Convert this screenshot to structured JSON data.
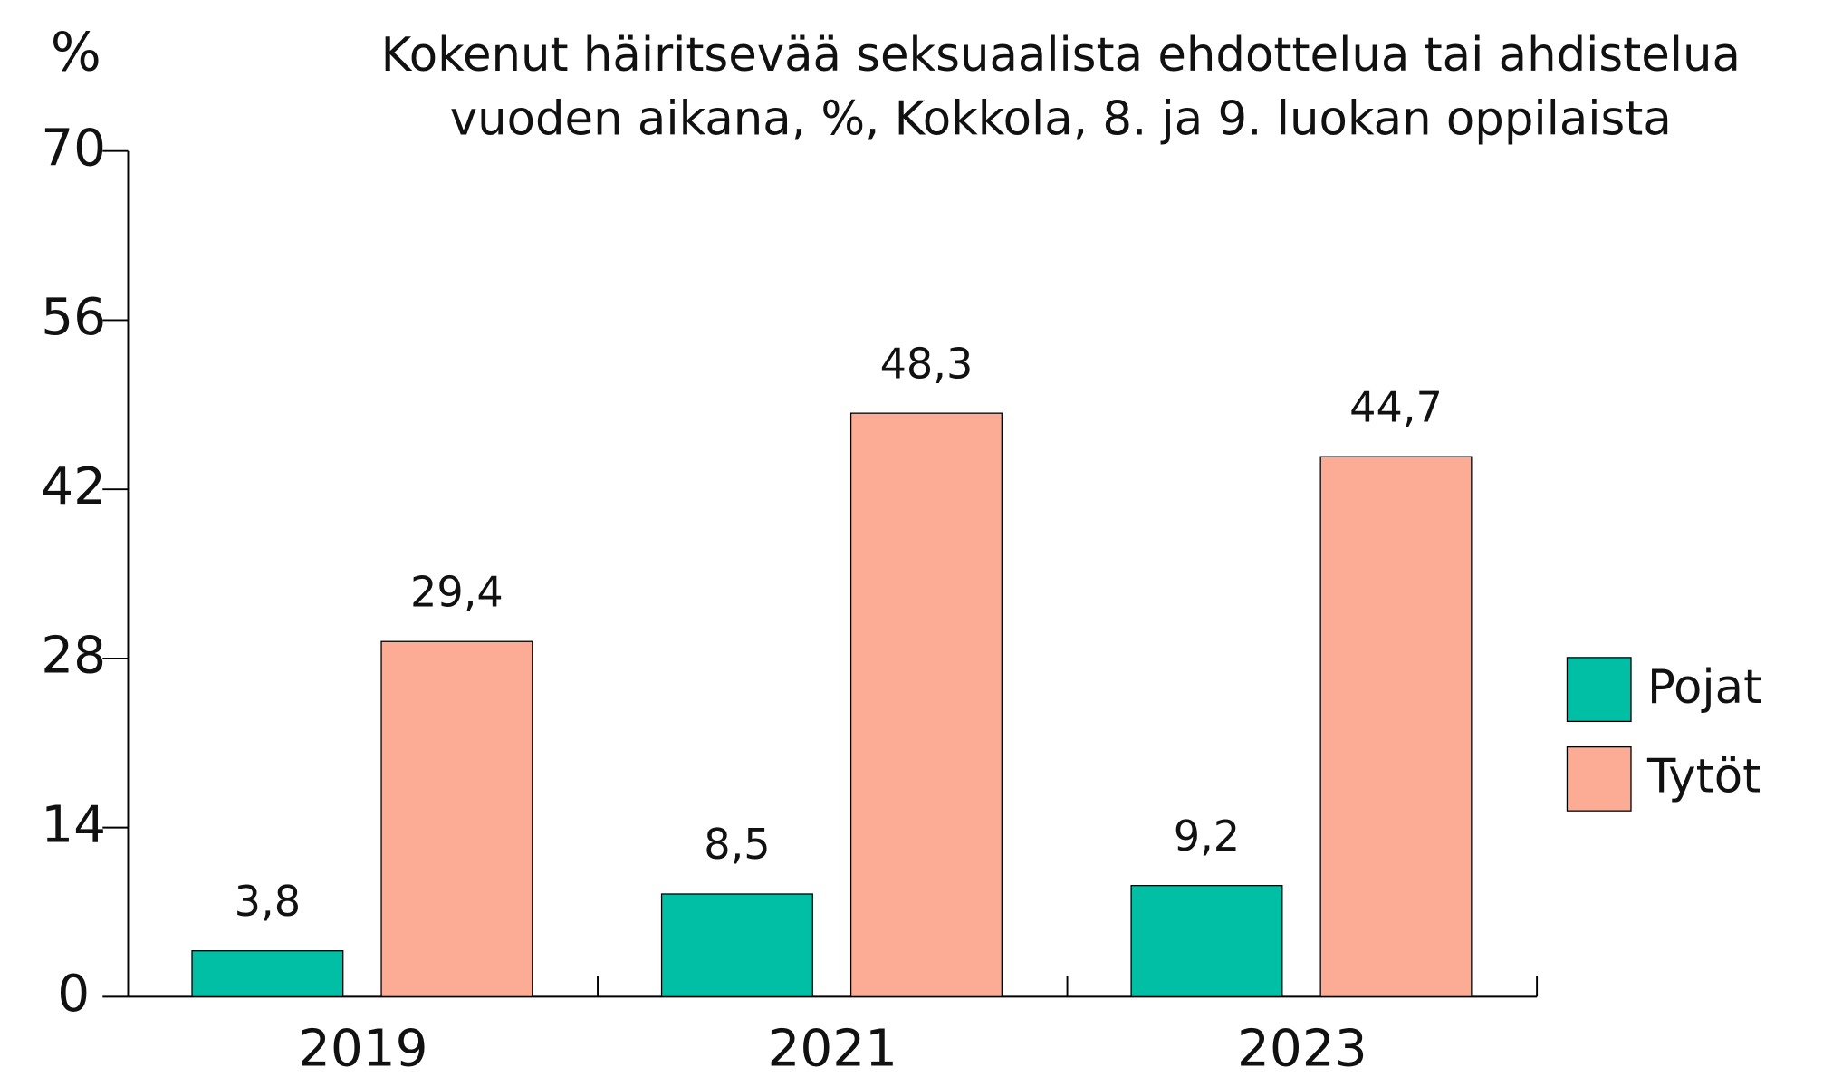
{
  "chart_data": {
    "type": "bar",
    "title": [
      "Kokenut häiritsevää seksuaalista ehdottelua tai ahdistelua",
      "vuoden aikana, %, Kokkola, 8. ja 9. luokan oppilaista"
    ],
    "y_label": "%",
    "categories": [
      "2019",
      "2021",
      "2023"
    ],
    "series": [
      {
        "name": "Pojat",
        "color": "#00bfa5",
        "values": [
          3.8,
          8.5,
          9.2
        ],
        "value_labels": [
          "3,8",
          "8,5",
          "9,2"
        ]
      },
      {
        "name": "Tytöt",
        "color": "#fcab94",
        "values": [
          29.4,
          48.3,
          44.7
        ],
        "value_labels": [
          "29,4",
          "48,3",
          "44,7"
        ]
      }
    ],
    "ylim": [
      0,
      70
    ],
    "yticks": [
      0,
      14,
      28,
      42,
      56,
      70
    ],
    "grid": false,
    "legend": "right"
  }
}
